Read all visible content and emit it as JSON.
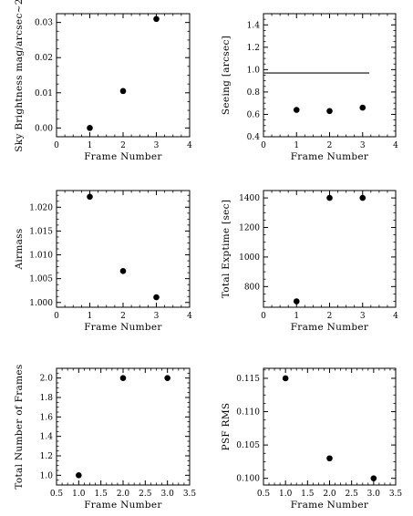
{
  "chart_data": [
    {
      "type": "scatter",
      "xlabel": "Frame Number",
      "ylabel": "Sky Brightness mag/arcsec~2",
      "xlim": [
        0,
        4
      ],
      "ylim": [
        -0.0025,
        0.0325
      ],
      "x_ticks": [
        0,
        1,
        2,
        3,
        4
      ],
      "x_tick_labels": [
        "0",
        "1",
        "2",
        "3",
        "4"
      ],
      "y_ticks": [
        0,
        0.01,
        0.02,
        0.03
      ],
      "y_tick_labels": [
        "0.00",
        "0.01",
        "0.02",
        "0.03"
      ],
      "series": [
        {
          "x": [
            1,
            2,
            3
          ],
          "y": [
            0.0,
            0.0105,
            0.031
          ]
        }
      ]
    },
    {
      "type": "scatter",
      "xlabel": "Frame Number",
      "ylabel": "Seeing [arcsec]",
      "xlim": [
        0,
        4
      ],
      "ylim": [
        0.4,
        1.5
      ],
      "x_ticks": [
        0,
        1,
        2,
        3,
        4
      ],
      "x_tick_labels": [
        "0",
        "1",
        "2",
        "3",
        "4"
      ],
      "y_ticks": [
        0.4,
        0.6,
        0.8,
        1.0,
        1.2,
        1.4
      ],
      "y_tick_labels": [
        "0.4",
        "0.6",
        "0.8",
        "1.0",
        "1.2",
        "1.4"
      ],
      "series": [
        {
          "x": [
            1,
            2,
            3
          ],
          "y": [
            0.64,
            0.63,
            0.66
          ]
        }
      ],
      "reference_lines": [
        {
          "x": [
            0,
            3.2
          ],
          "y": [
            0.97,
            0.97
          ]
        }
      ]
    },
    {
      "type": "scatter",
      "xlabel": "Frame Number",
      "ylabel": "Airmass",
      "xlim": [
        0,
        4
      ],
      "ylim": [
        0.999,
        1.0235
      ],
      "x_ticks": [
        0,
        1,
        2,
        3,
        4
      ],
      "x_tick_labels": [
        "0",
        "1",
        "2",
        "3",
        "4"
      ],
      "y_ticks": [
        1.0,
        1.005,
        1.01,
        1.015,
        1.02
      ],
      "y_tick_labels": [
        "1.000",
        "1.005",
        "1.010",
        "1.015",
        "1.020"
      ],
      "series": [
        {
          "x": [
            1,
            2,
            3
          ],
          "y": [
            1.0222,
            1.0066,
            1.0011
          ]
        }
      ]
    },
    {
      "type": "scatter",
      "xlabel": "Frame Number",
      "ylabel": "Total Exptime [sec]",
      "xlim": [
        0,
        4
      ],
      "ylim": [
        660,
        1450
      ],
      "x_ticks": [
        0,
        1,
        2,
        3,
        4
      ],
      "x_tick_labels": [
        "0",
        "1",
        "2",
        "3",
        "4"
      ],
      "y_ticks": [
        800,
        1000,
        1200,
        1400
      ],
      "y_tick_labels": [
        "800",
        "1000",
        "1200",
        "1400"
      ],
      "series": [
        {
          "x": [
            1,
            2,
            3
          ],
          "y": [
            700,
            1400,
            1400
          ]
        }
      ]
    },
    {
      "type": "scatter",
      "xlabel": "Frame Number",
      "ylabel": "Total Number of Frames",
      "xlim": [
        0.5,
        3.5
      ],
      "ylim": [
        0.9,
        2.1
      ],
      "x_ticks": [
        0.5,
        1.0,
        1.5,
        2.0,
        2.5,
        3.0,
        3.5
      ],
      "x_tick_labels": [
        "0.5",
        "1.0",
        "1.5",
        "2.0",
        "2.5",
        "3.0",
        "3.5"
      ],
      "y_ticks": [
        1.0,
        1.2,
        1.4,
        1.6,
        1.8,
        2.0
      ],
      "y_tick_labels": [
        "1.0",
        "1.2",
        "1.4",
        "1.6",
        "1.8",
        "2.0"
      ],
      "series": [
        {
          "x": [
            1,
            2,
            3
          ],
          "y": [
            1.0,
            2.0,
            2.0
          ]
        }
      ]
    },
    {
      "type": "scatter",
      "xlabel": "Frame Number",
      "ylabel": "PSF RMS",
      "xlim": [
        0.5,
        3.5
      ],
      "ylim": [
        0.099,
        0.1165
      ],
      "x_ticks": [
        0.5,
        1.0,
        1.5,
        2.0,
        2.5,
        3.0,
        3.5
      ],
      "x_tick_labels": [
        "0.5",
        "1.0",
        "1.5",
        "2.0",
        "2.5",
        "3.0",
        "3.5"
      ],
      "y_ticks": [
        0.1,
        0.105,
        0.11,
        0.115
      ],
      "y_tick_labels": [
        "0.100",
        "0.105",
        "0.110",
        "0.115"
      ],
      "series": [
        {
          "x": [
            1,
            2,
            3
          ],
          "y": [
            0.115,
            0.103,
            0.1
          ]
        }
      ]
    }
  ]
}
